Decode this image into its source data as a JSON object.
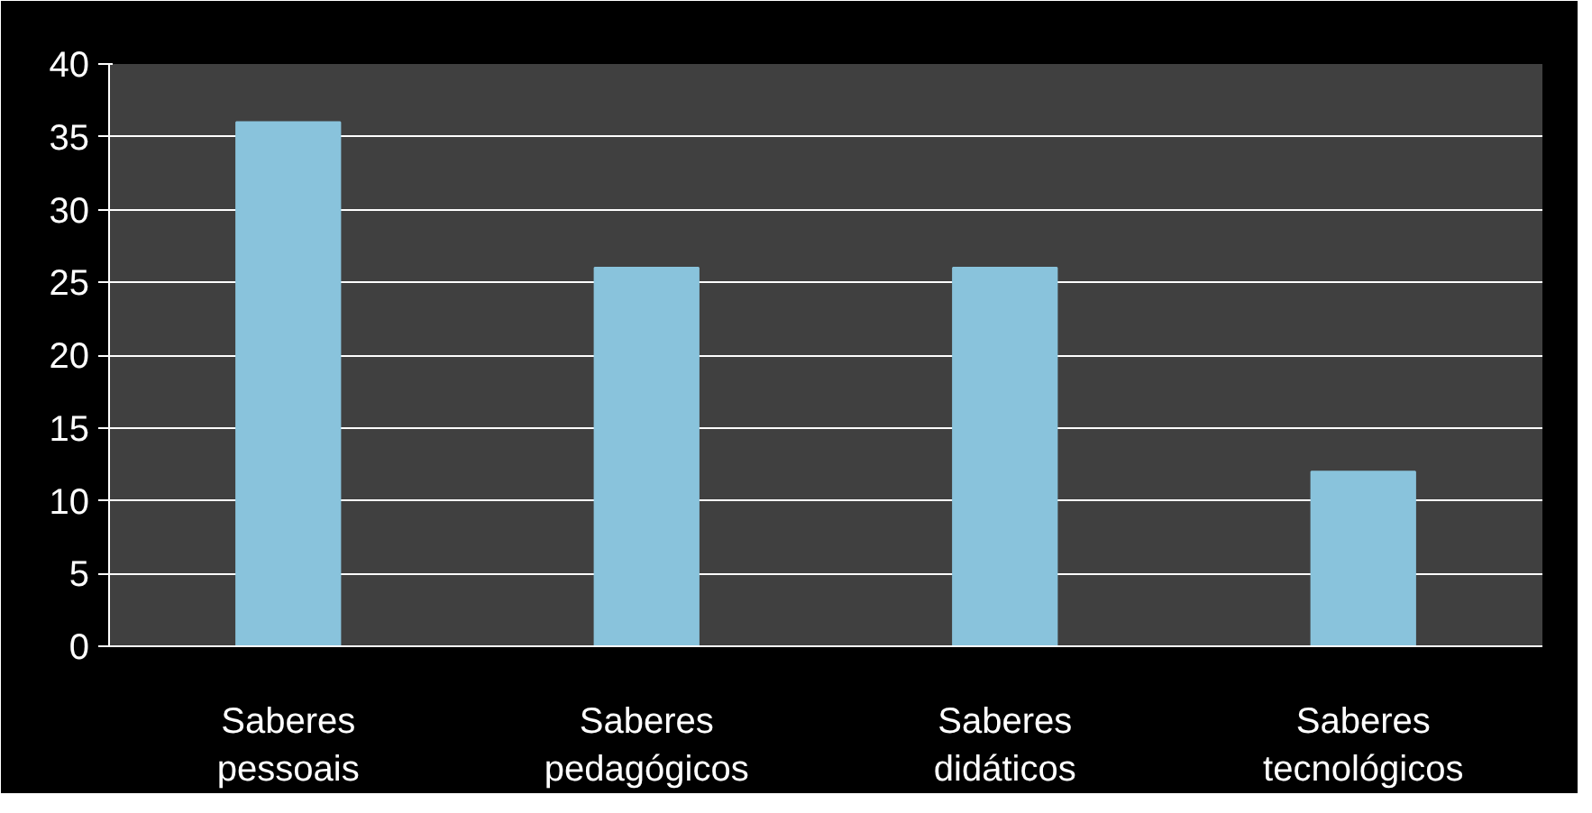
{
  "chart_data": {
    "type": "bar",
    "categories": [
      "Saberes\npessoais",
      "Saberes\npedagógicos",
      "Saberes\ndidáticos",
      "Saberes\ntecnológicos"
    ],
    "values": [
      36,
      26,
      26,
      12
    ],
    "color": "#89c3dc",
    "ylim": [
      0,
      40
    ],
    "yticks": [
      0,
      5,
      10,
      15,
      20,
      25,
      30,
      35,
      40
    ],
    "grid": "y"
  }
}
